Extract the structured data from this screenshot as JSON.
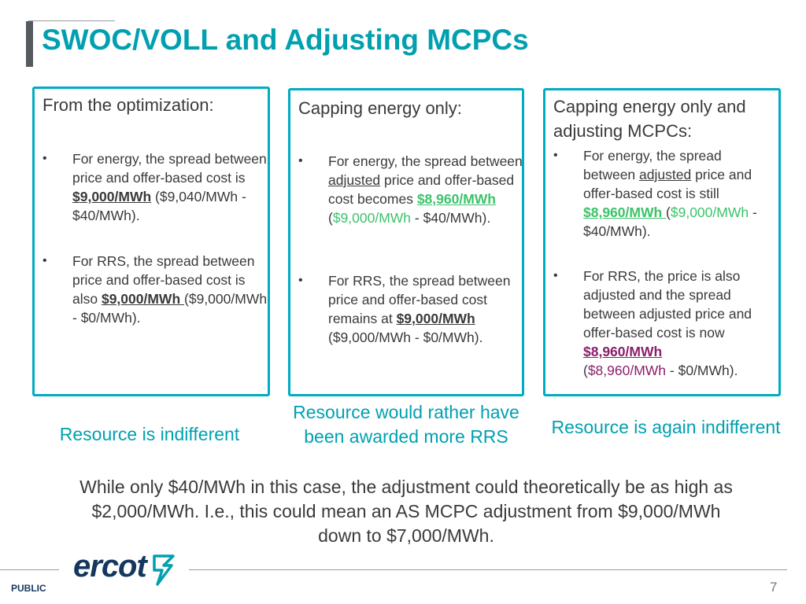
{
  "title": "SWOC/VOLL and Adjusting MCPCs",
  "boxes": [
    {
      "heading": "From the optimization:",
      "bullet1": {
        "t1": "For energy, the spread between price and offer-based cost is ",
        "v1": "$9,000/MWh",
        "t2": " ($9,040/MWh - $40/MWh)."
      },
      "bullet2": {
        "t1": "For RRS, the spread between price and offer-based cost is also ",
        "v1": "$9,000/MWh ",
        "t2": "($9,000/MWh - $0/MWh)."
      }
    },
    {
      "heading": "Capping energy only:",
      "bullet1": {
        "t1": "For energy, the spread between ",
        "adj": "adjusted",
        "t2": " price and offer-based cost becomes ",
        "v1": "$8,960/MWh",
        "p1": "(",
        "g1": "$9,000/MWh",
        "t3": " - $40/MWh)."
      },
      "bullet2": {
        "t1": "For RRS, the spread between price and offer-based cost remains at ",
        "v1": "$9,000/MWh ",
        "t2": "($9,000/MWh - $0/MWh)."
      }
    },
    {
      "heading": "Capping energy only and adjusting MCPCs:",
      "bullet1": {
        "t1": "For energy, the spread between ",
        "adj": "adjusted",
        "t2": " price and offer-based cost is still ",
        "v1": "$8,960/MWh ",
        "p1": "(",
        "g1": "$9,000/MWh",
        "t3": " - $40/MWh)."
      },
      "bullet2": {
        "t1": "For RRS, the price is also adjusted and the spread between adjusted price and offer-based cost is now ",
        "v1": "$8,960/MWh",
        "p1": "(",
        "g1": "$8,960/MWh",
        "t3": " - $0/MWh)."
      }
    }
  ],
  "captions": [
    "Resource is indifferent",
    "Resource would rather have been awarded more RRS",
    "Resource is again indifferent"
  ],
  "note": "While only $40/MWh in this case, the adjustment could theoretically be as high as $2,000/MWh.  I.e., this could mean an AS MCPC adjustment from $9,000/MWh down to $7,000/MWh.",
  "footer": {
    "logo": "ercot",
    "classification": "PUBLIC",
    "page": "7"
  },
  "bullet_char": "•",
  "colors": {
    "accent": "#00a0b0",
    "border": "#00acc1",
    "green": "#3cc36a",
    "purple": "#8b1f6b"
  }
}
